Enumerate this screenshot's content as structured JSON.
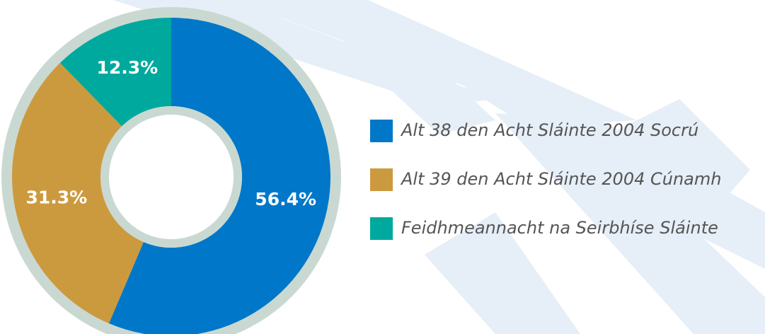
{
  "chart_data": {
    "type": "donut",
    "categories": [
      "Alt 38 den Acht Sláinte 2004 Socrú",
      "Alt 39 den Acht Sláinte 2004 Cúnamh",
      "Feidhmeannacht na Seirbhíse Sláinte"
    ],
    "values": [
      56.4,
      31.3,
      12.3
    ],
    "value_labels": [
      "56.4%",
      "31.3%",
      "12.3%"
    ],
    "colors": [
      "#0077c8",
      "#cc9a3e",
      "#00a99d"
    ]
  }
}
